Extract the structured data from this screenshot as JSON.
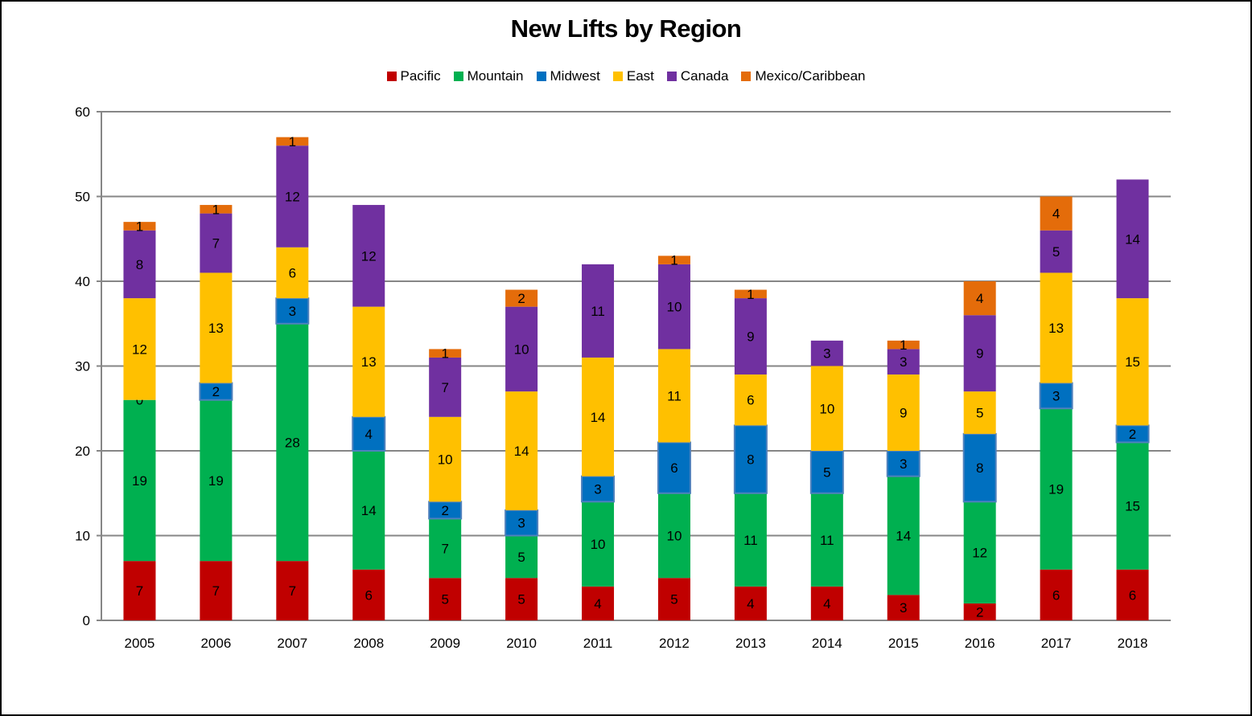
{
  "chart_data": {
    "type": "bar",
    "stacked": true,
    "title": "New Lifts by Region",
    "xlabel": "",
    "ylabel": "",
    "ylim": [
      0,
      60
    ],
    "yticks": [
      0,
      10,
      20,
      30,
      40,
      50,
      60
    ],
    "grid": true,
    "legend_position": "top",
    "categories": [
      "2005",
      "2006",
      "2007",
      "2008",
      "2009",
      "2010",
      "2011",
      "2012",
      "2013",
      "2014",
      "2015",
      "2016",
      "2017",
      "2018"
    ],
    "series": [
      {
        "name": "Pacific",
        "color": "#C00000",
        "values": [
          7,
          7,
          7,
          6,
          5,
          5,
          4,
          5,
          4,
          4,
          3,
          2,
          6,
          6
        ]
      },
      {
        "name": "Mountain",
        "color": "#00B050",
        "values": [
          19,
          19,
          28,
          14,
          7,
          5,
          10,
          10,
          11,
          11,
          14,
          12,
          19,
          15
        ]
      },
      {
        "name": "Midwest",
        "color": "#0070C0",
        "values": [
          0,
          2,
          3,
          4,
          2,
          3,
          3,
          6,
          8,
          5,
          3,
          8,
          3,
          2
        ]
      },
      {
        "name": "East",
        "color": "#FFC000",
        "values": [
          12,
          13,
          6,
          13,
          10,
          14,
          14,
          11,
          6,
          10,
          9,
          5,
          13,
          15
        ]
      },
      {
        "name": "Canada",
        "color": "#7030A0",
        "values": [
          8,
          7,
          12,
          12,
          7,
          10,
          11,
          10,
          9,
          3,
          3,
          9,
          5,
          14
        ]
      },
      {
        "name": "Mexico/Caribbean",
        "color": "#E46C0A",
        "values": [
          1,
          1,
          1,
          0,
          1,
          2,
          0,
          1,
          1,
          0,
          1,
          4,
          4,
          0
        ]
      }
    ],
    "data_labels": {
      "Pacific": [
        "7",
        "7",
        "7",
        "6",
        "5",
        "5",
        "4",
        "5",
        "4",
        "4",
        "3",
        "2",
        "6",
        "6"
      ],
      "Mountain": [
        "19",
        "19",
        "28",
        "14",
        "7",
        "5",
        "10",
        "10",
        "11",
        "11",
        "14",
        "12",
        "19",
        "15"
      ],
      "Midwest": [
        "0",
        "2",
        "3",
        "4",
        "2",
        "3",
        "3",
        "6",
        "8",
        "5",
        "3",
        "8",
        "3",
        "2"
      ],
      "East": [
        "12",
        "13",
        "6",
        "13",
        "10",
        "14",
        "14",
        "11",
        "6",
        "10",
        "9",
        "5",
        "13",
        "15"
      ],
      "Canada": [
        "8",
        "7",
        "12",
        "12",
        "7",
        "10",
        "11",
        "10",
        "9",
        "3",
        "3",
        "9",
        "5",
        "14"
      ],
      "Mexico/Caribbean": [
        "1",
        "1",
        "1",
        "",
        "1",
        "2",
        "",
        "1",
        "1",
        "",
        "1",
        "4",
        "4",
        ""
      ]
    }
  }
}
